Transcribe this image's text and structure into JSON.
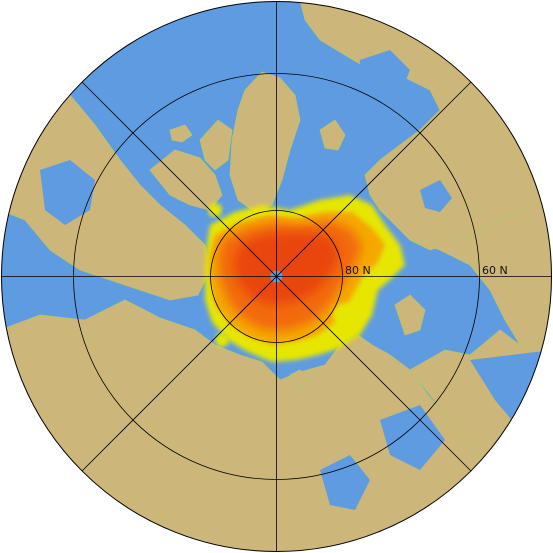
{
  "map": {
    "projection": "north-polar-stereographic",
    "labels": {
      "lat80": "80 N",
      "lat60": "60 N"
    },
    "colors": {
      "ocean": "#5f9be0",
      "land": "#ccb67a",
      "ice_low": "#e6e600",
      "ice_mid": "#f5a800",
      "ice_high": "#f26a10",
      "ice_max": "#e8400a",
      "coastline": "#b7c46a",
      "grid": "#000000",
      "pole_hole": "#5f9be0"
    }
  }
}
